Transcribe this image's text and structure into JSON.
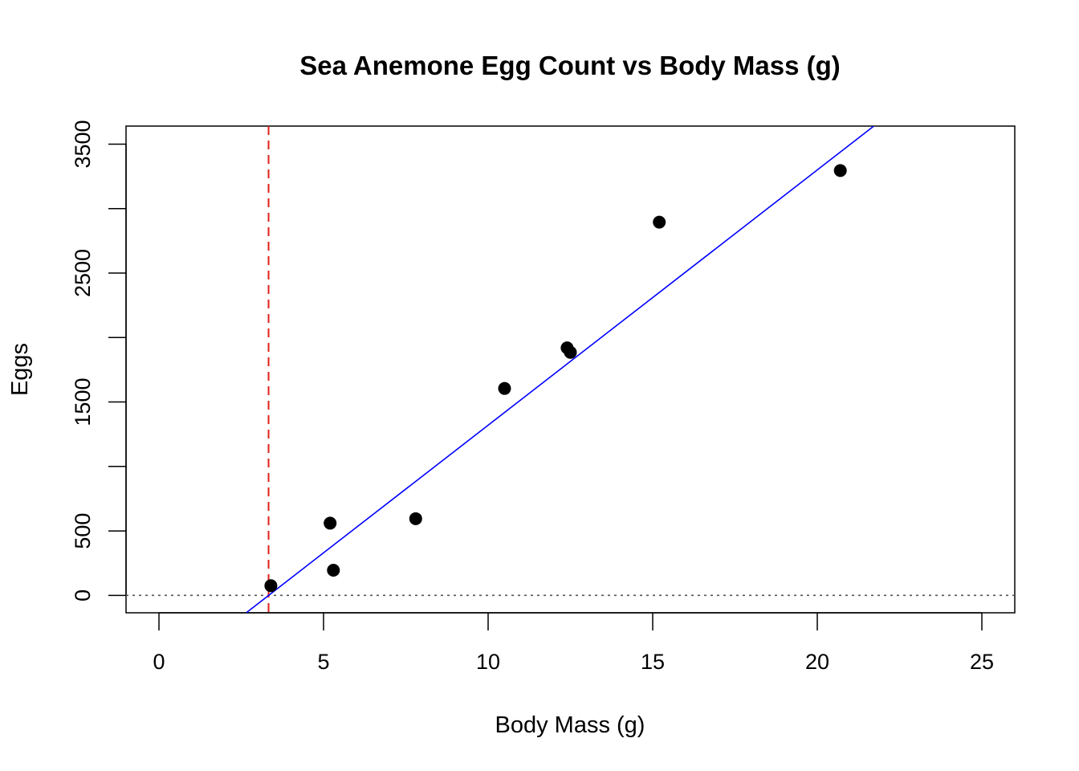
{
  "chart_data": {
    "type": "scatter",
    "title": "Sea Anemone Egg Count vs Body Mass (g)",
    "xlabel": "Body Mass (g)",
    "ylabel": "Eggs",
    "xlim": [
      -1,
      26
    ],
    "ylim": [
      -135,
      3640
    ],
    "xticks": [
      0,
      5,
      10,
      15,
      20,
      25
    ],
    "yticks": [
      0,
      500,
      1000,
      1500,
      2000,
      2500,
      3000,
      3500
    ],
    "ytick_labels": [
      "0",
      "500",
      "",
      "1500",
      "",
      "2500",
      "",
      "3500"
    ],
    "grid": false,
    "legend": "none",
    "points": [
      {
        "x": 3.4,
        "y": 75
      },
      {
        "x": 5.2,
        "y": 560
      },
      {
        "x": 5.3,
        "y": 195
      },
      {
        "x": 7.8,
        "y": 595
      },
      {
        "x": 10.5,
        "y": 1605
      },
      {
        "x": 12.4,
        "y": 1920
      },
      {
        "x": 12.5,
        "y": 1885
      },
      {
        "x": 15.2,
        "y": 2895
      },
      {
        "x": 20.7,
        "y": 3295
      }
    ],
    "regression_line": {
      "slope": 198.0,
      "intercept": -660.0,
      "color": "#0000FF"
    },
    "vertical_reference": {
      "x": 3.33,
      "style": "dashed",
      "color": "#E0201B"
    },
    "horizontal_reference": {
      "y": 0,
      "style": "dotted",
      "color": "#555555"
    },
    "point_color": "#000000"
  }
}
